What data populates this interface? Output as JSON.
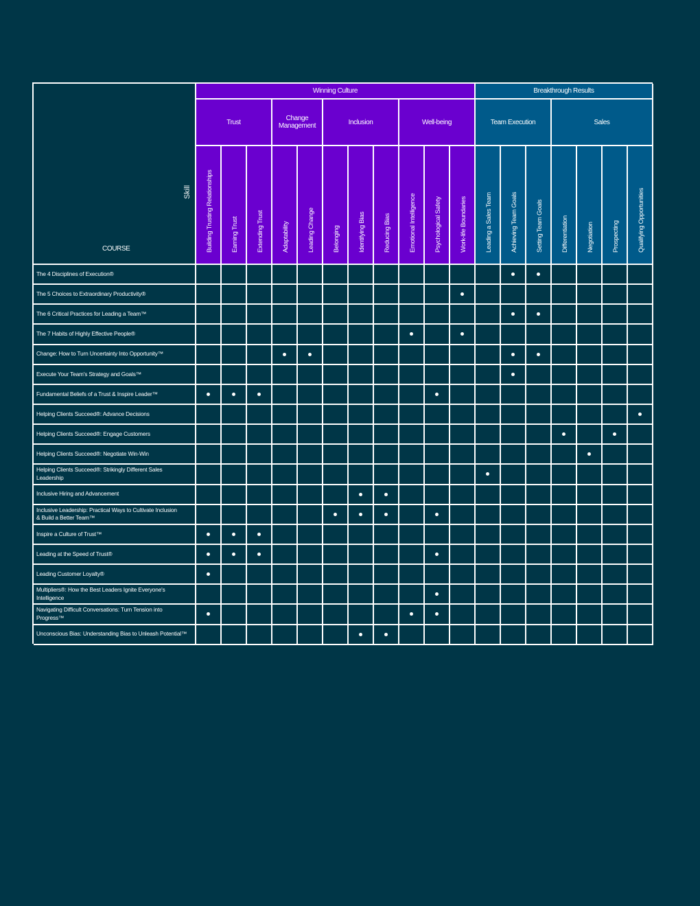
{
  "colors": {
    "background": "#003647",
    "winning_culture": "#6a00cf",
    "breakthrough_results": "#005a8a",
    "grid_lines": "#ffffff",
    "dot": "#ffffff"
  },
  "table": {
    "corner_skill_label": "Skill",
    "corner_course_label": "COURSE",
    "top_groups": [
      {
        "label": "Winning Culture",
        "span": 11,
        "color": "purple"
      },
      {
        "label": "Breakthrough Results",
        "span": 7,
        "color": "blue"
      }
    ],
    "sub_groups": [
      {
        "label": "Trust",
        "span": 3,
        "color": "purple"
      },
      {
        "label": "Change\nManagement",
        "span": 2,
        "color": "purple"
      },
      {
        "label": "Inclusion",
        "span": 3,
        "color": "purple"
      },
      {
        "label": "Well-being",
        "span": 3,
        "color": "purple"
      },
      {
        "label": "Team Execution",
        "span": 3,
        "color": "blue"
      },
      {
        "label": "Sales",
        "span": 4,
        "color": "blue"
      }
    ],
    "skills": [
      {
        "label": "Building Trusting Relationships",
        "color": "purple"
      },
      {
        "label": "Earning Trust",
        "color": "purple"
      },
      {
        "label": "Extending Trust",
        "color": "purple"
      },
      {
        "label": "Adaptability",
        "color": "purple"
      },
      {
        "label": "Leading Change",
        "color": "purple"
      },
      {
        "label": "Belonging",
        "color": "purple"
      },
      {
        "label": "Identifying Bias",
        "color": "purple"
      },
      {
        "label": "Reducing Bias",
        "color": "purple"
      },
      {
        "label": "Emotional Intelligence",
        "color": "purple"
      },
      {
        "label": "Psychological Safety",
        "color": "purple"
      },
      {
        "label": "Work-life Boundaries",
        "color": "purple"
      },
      {
        "label": "Leading a Sales Team",
        "color": "blue"
      },
      {
        "label": "Achieving Team Goals",
        "color": "blue"
      },
      {
        "label": "Setting Team Goals",
        "color": "blue"
      },
      {
        "label": "Differentiation",
        "color": "blue"
      },
      {
        "label": "Negotiation",
        "color": "blue"
      },
      {
        "label": "Prospecting",
        "color": "blue"
      },
      {
        "label": "Qualifying Opportunities",
        "color": "blue"
      }
    ],
    "courses": [
      {
        "name": "The 4 Disciplines of Execution®",
        "marks": [
          12,
          13
        ]
      },
      {
        "name": "The 5 Choices to Extraordinary Productivity®",
        "marks": [
          10
        ]
      },
      {
        "name": "The 6 Critical Practices for Leading a Team™",
        "marks": [
          12,
          13
        ]
      },
      {
        "name": "The 7 Habits of Highly Effective People®",
        "marks": [
          8,
          10
        ]
      },
      {
        "name": "Change: How to Turn Uncertainty Into Opportunity™",
        "marks": [
          3,
          4,
          12,
          13
        ]
      },
      {
        "name": "Execute Your Team's Strategy and Goals™",
        "marks": [
          12
        ]
      },
      {
        "name": "Fundamental Beliefs of a Trust & Inspire Leader™",
        "marks": [
          0,
          1,
          2,
          9
        ]
      },
      {
        "name": "Helping Clients Succeed®: Advance Decisions",
        "marks": [
          17
        ]
      },
      {
        "name": "Helping Clients Succeed®: Engage Customers",
        "marks": [
          14,
          16
        ]
      },
      {
        "name": "Helping Clients Succeed®: Negotiate Win-Win",
        "marks": [
          15
        ]
      },
      {
        "name": "Helping Clients Succeed®: Strikingly Different Sales\nLeadership",
        "marks": [
          11
        ]
      },
      {
        "name": "Inclusive Hiring and Advancement",
        "marks": [
          6,
          7
        ]
      },
      {
        "name": " Inclusive Leadership: Practical Ways to Cultivate   Inclusion\n& Build a Better Team™",
        "marks": [
          5,
          6,
          7,
          9
        ]
      },
      {
        "name": "Inspire a Culture of Trust™",
        "marks": [
          0,
          1,
          2
        ]
      },
      {
        "name": "Leading at the Speed of Trust®",
        "marks": [
          0,
          1,
          2,
          9
        ]
      },
      {
        "name": "Leading Customer Loyalty®",
        "marks": [
          0
        ]
      },
      {
        "name": "Multipliers®: How the Best Leaders Ignite Everyone's\nIntelligence",
        "marks": [
          9
        ]
      },
      {
        "name": "Navigating Difficult Conversations: Turn Tension into\nProgress™",
        "marks": [
          0,
          8,
          9
        ]
      },
      {
        "name": "Unconscious Bias: Understanding Bias to Unleash  Potential™",
        "marks": [
          6,
          7
        ]
      }
    ]
  }
}
